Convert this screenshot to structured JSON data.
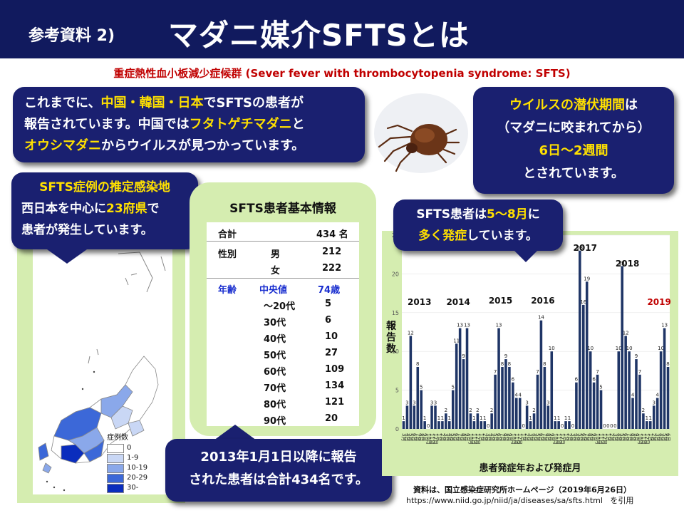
{
  "header": {
    "label": "参考資料 2)",
    "title": "マダニ媒介SFTSとは"
  },
  "subtitle": "重症熱性血小板減少症候群 (Sever fever with thrombocytopenia syndrome: SFTS)",
  "bubble_reports": {
    "l1_a": "これまでに、",
    "l1_b": "中国・韓国・日本",
    "l1_c": "でSFTSの患者が",
    "l2_a": "報告されています。中国では",
    "l2_b": "フタトゲチマダニ",
    "l2_c": "と",
    "l3_a": "オウシマダニ",
    "l3_b": "からウイルスが見つかっています。"
  },
  "bubble_incubation": {
    "l1_a": "ウイルスの潜伏期間",
    "l1_b": "は",
    "l2": "（マダニに咬まれてから）",
    "l3": "6日〜2週間",
    "l4": "とされています。"
  },
  "bubble_map": {
    "title": "SFTS症例の推定感染地",
    "l1_a": "西日本を中心に",
    "l1_b": "23府県",
    "l1_c": "で",
    "l2": "患者が発生しています。"
  },
  "map_legend": {
    "title": "症例数",
    "items": [
      "0",
      "1-9",
      "10-19",
      "20-29",
      "30-"
    ],
    "colors": [
      "#ffffff",
      "#c9d7f5",
      "#8aa8ea",
      "#3c68d8",
      "#0a2dbd"
    ]
  },
  "table": {
    "title": "SFTS患者基本情報",
    "total_label": "合計",
    "total_value": "434 名",
    "sex_label": "性別",
    "male_label": "男",
    "male_value": "212",
    "female_label": "女",
    "female_value": "222",
    "age_label": "年齢",
    "median_label": "中央値",
    "median_value": "74歳",
    "age_rows": [
      {
        "label": "〜20代",
        "value": "5"
      },
      {
        "label": "30代",
        "value": "6"
      },
      {
        "label": "40代",
        "value": "10"
      },
      {
        "label": "50代",
        "value": "27"
      },
      {
        "label": "60代",
        "value": "109"
      },
      {
        "label": "70代",
        "value": "134"
      },
      {
        "label": "80代",
        "value": "121"
      },
      {
        "label": "90代",
        "value": "20"
      }
    ]
  },
  "bubble_total": {
    "l1": "2013年1月1日以降に報告",
    "l2": "された患者は合計434名です。"
  },
  "bubble_season": {
    "l1_a": "SFTS患者は",
    "l1_b": "5〜8月",
    "l1_c": "に",
    "l2_a": "多く発症",
    "l2_b": "しています。"
  },
  "chart_data": {
    "type": "bar",
    "title": "",
    "xlabel": "患者発症年および発症月",
    "ylabel": "報告数",
    "ylim": [
      0,
      25
    ],
    "yticks": [
      0,
      5,
      10,
      15,
      20,
      25
    ],
    "color": "#1f3566",
    "years": [
      {
        "label": "2013",
        "months": [
          "3月",
          "4月",
          "5月",
          "6月",
          "7月",
          "8月",
          "9月",
          "10月",
          "11月",
          "12月"
        ],
        "values": [
          1,
          3,
          12,
          3,
          8,
          5,
          1,
          0,
          3,
          3
        ]
      },
      {
        "label": "2014",
        "months": [
          "1月",
          "2月",
          "3月",
          "4月",
          "5月",
          "6月",
          "7月",
          "8月",
          "9月",
          "10月",
          "11月",
          "12月"
        ],
        "values": [
          1,
          1,
          2,
          1,
          5,
          11,
          13,
          9,
          13,
          2,
          1,
          2
        ]
      },
      {
        "label": "2015",
        "months": [
          "1月",
          "2月",
          "3月",
          "4月",
          "5月",
          "6月",
          "7月",
          "8月",
          "9月",
          "10月",
          "11月",
          "12月"
        ],
        "values": [
          1,
          1,
          0,
          2,
          7,
          13,
          8,
          9,
          8,
          6,
          4,
          4
        ]
      },
      {
        "label": "2016",
        "months": [
          "1月",
          "2月",
          "3月",
          "4月",
          "5月",
          "6月",
          "7月",
          "8月",
          "9月",
          "10月",
          "11月",
          "12月"
        ],
        "values": [
          0,
          3,
          1,
          2,
          7,
          14,
          8,
          3,
          10,
          1,
          1,
          0
        ]
      },
      {
        "label": "2017",
        "months": [
          "1月",
          "2月",
          "3月",
          "4月",
          "5月",
          "6月",
          "7月",
          "8月",
          "9月",
          "10月",
          "11月",
          "12月"
        ],
        "values": [
          1,
          1,
          0,
          6,
          23,
          16,
          19,
          10,
          6,
          7,
          5,
          0
        ]
      },
      {
        "label": "2018",
        "months": [
          "1月",
          "2月",
          "3月",
          "4月",
          "5月",
          "6月",
          "7月",
          "8月",
          "9月",
          "10月",
          "11月",
          "12月"
        ],
        "values": [
          0,
          0,
          0,
          10,
          21,
          12,
          10,
          4,
          9,
          7,
          2,
          1
        ]
      },
      {
        "label": "2019",
        "months": [
          "1月",
          "2月",
          "3月",
          "4月",
          "5月",
          "6月"
        ],
        "values": [
          1,
          3,
          4,
          10,
          13,
          8
        ],
        "label_color": "#c00000"
      }
    ]
  },
  "source": {
    "l1": "資料は、国立感染症研究所ホームページ（2019年6月26日）",
    "l2_url": "https://www.niid.go.jp/niid/ja/diseases/sa/sfts.html",
    "l2_suffix": "を引用"
  }
}
